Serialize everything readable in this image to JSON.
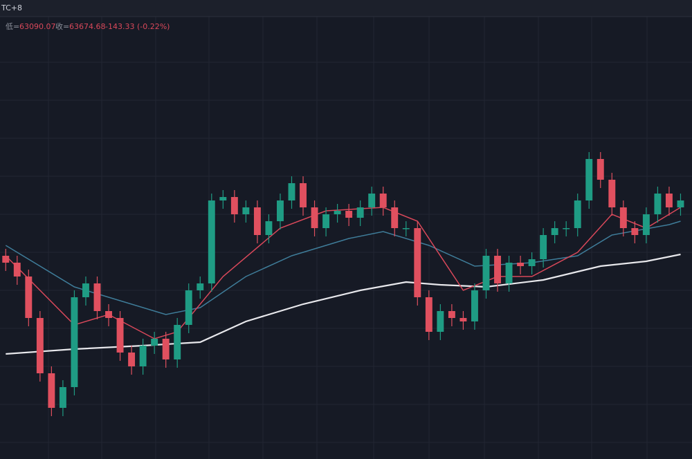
{
  "header": {
    "timezone": "TC+8",
    "low_label": "低=",
    "low": "63090.07",
    "close_label": "收=",
    "close": "63674.68",
    "change": "-143.33 (-0.22%)"
  },
  "chart_data": {
    "type": "candlestick",
    "up_color": "#1f9c84",
    "down_color": "#e0505f",
    "xlim": [
      -0.5,
      60
    ],
    "ylim": [
      60000,
      66640
    ],
    "open": [
      62940,
      62840,
      62640,
      62040,
      61240,
      60740,
      61040,
      62340,
      62540,
      62140,
      62040,
      61540,
      61340,
      61640,
      61740,
      61440,
      61940,
      62440,
      62540,
      63740,
      63790,
      63540,
      63640,
      63240,
      63440,
      63740,
      63990,
      63640,
      63340,
      63540,
      63590,
      63490,
      63640,
      63840,
      63640,
      63340,
      63340,
      62340,
      61840,
      62140,
      62040,
      61990,
      62440,
      62940,
      62540,
      62840,
      62790,
      62890,
      63240,
      63340,
      63340,
      63740,
      64340,
      64040,
      63640,
      63340,
      63240,
      63540,
      63840,
      63640
    ],
    "high": [
      63040,
      62940,
      62740,
      62140,
      61340,
      61140,
      62440,
      62640,
      62640,
      62240,
      62140,
      61640,
      61740,
      61840,
      61840,
      62040,
      62540,
      62640,
      63840,
      63890,
      63890,
      63740,
      63740,
      63540,
      63840,
      64090,
      64090,
      63740,
      63640,
      63690,
      63690,
      63740,
      63940,
      63940,
      63740,
      63440,
      63440,
      62440,
      62240,
      62240,
      62140,
      62540,
      63040,
      63040,
      62940,
      62940,
      62990,
      63340,
      63440,
      63440,
      63840,
      64440,
      64440,
      64140,
      63740,
      63440,
      63640,
      63940,
      63940,
      63840
    ],
    "low": [
      62720,
      62520,
      61920,
      61120,
      60620,
      60620,
      60920,
      62220,
      62020,
      61920,
      61420,
      61220,
      61220,
      61520,
      61320,
      61320,
      61820,
      62320,
      62420,
      63620,
      63420,
      63420,
      63120,
      63120,
      63320,
      63620,
      63520,
      63220,
      63220,
      63420,
      63370,
      63370,
      63520,
      63520,
      63220,
      63220,
      62220,
      61720,
      61720,
      61920,
      61870,
      61870,
      62320,
      62420,
      62420,
      62670,
      62670,
      62770,
      63120,
      63220,
      63220,
      63620,
      63920,
      63520,
      63220,
      63120,
      63120,
      63420,
      63520,
      63520
    ],
    "close": [
      62840,
      62640,
      62040,
      61240,
      60740,
      61040,
      62340,
      62540,
      62140,
      62040,
      61540,
      61340,
      61640,
      61740,
      61440,
      61940,
      62440,
      62540,
      63740,
      63790,
      63540,
      63640,
      63240,
      63440,
      63740,
      63990,
      63640,
      63340,
      63540,
      63590,
      63490,
      63640,
      63840,
      63640,
      63340,
      63340,
      62340,
      61840,
      62140,
      62040,
      61990,
      62440,
      62940,
      62540,
      62840,
      62790,
      62890,
      63240,
      63340,
      63340,
      63740,
      64340,
      64040,
      63640,
      63340,
      63240,
      63540,
      63840,
      63640,
      63740
    ],
    "series": [
      {
        "color": "#e8e8ec",
        "x": [
          0,
          6,
          12,
          17,
          21,
          26,
          31,
          35,
          38,
          42,
          47,
          52,
          56,
          59
        ],
        "values": [
          61520,
          61590,
          61640,
          61690,
          61990,
          62240,
          62440,
          62560,
          62520,
          62490,
          62590,
          62790,
          62860,
          62960
        ]
      },
      {
        "color": "#3f7d9a",
        "x": [
          0,
          6,
          9,
          14,
          17,
          21,
          25,
          30,
          33,
          37,
          41,
          46,
          50,
          53,
          58,
          59
        ],
        "values": [
          63090,
          62490,
          62340,
          62090,
          62190,
          62640,
          62940,
          63190,
          63290,
          63090,
          62790,
          62840,
          62940,
          63240,
          63390,
          63440
        ]
      },
      {
        "color": "#d9485a",
        "x": [
          0,
          6,
          9,
          13,
          15,
          19,
          24,
          28,
          33,
          36,
          40,
          43,
          46,
          50,
          53,
          56,
          59
        ],
        "values": [
          62940,
          61940,
          62090,
          61740,
          61840,
          62640,
          63340,
          63590,
          63640,
          63440,
          62440,
          62640,
          62640,
          62990,
          63540,
          63340,
          63640
        ]
      }
    ]
  }
}
